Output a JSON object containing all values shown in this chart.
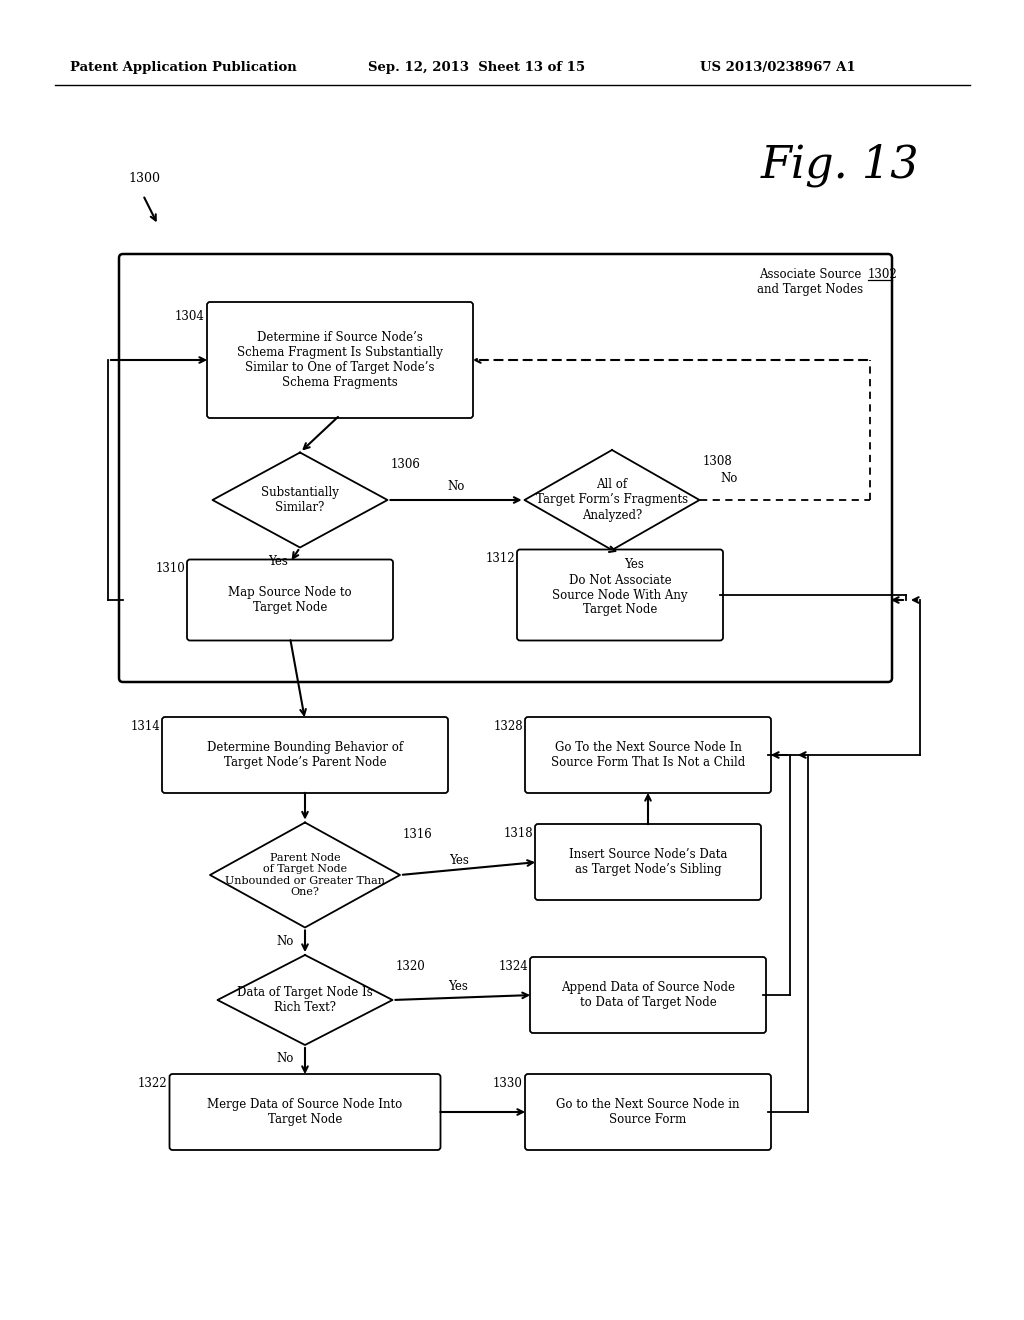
{
  "bg_color": "#ffffff",
  "header_text": "Patent Application Publication",
  "header_date": "Sep. 12, 2013  Sheet 13 of 15",
  "header_patent": "US 2013/0238967 A1",
  "fig_label": "Fig. 13",
  "fig_number": "1300"
}
